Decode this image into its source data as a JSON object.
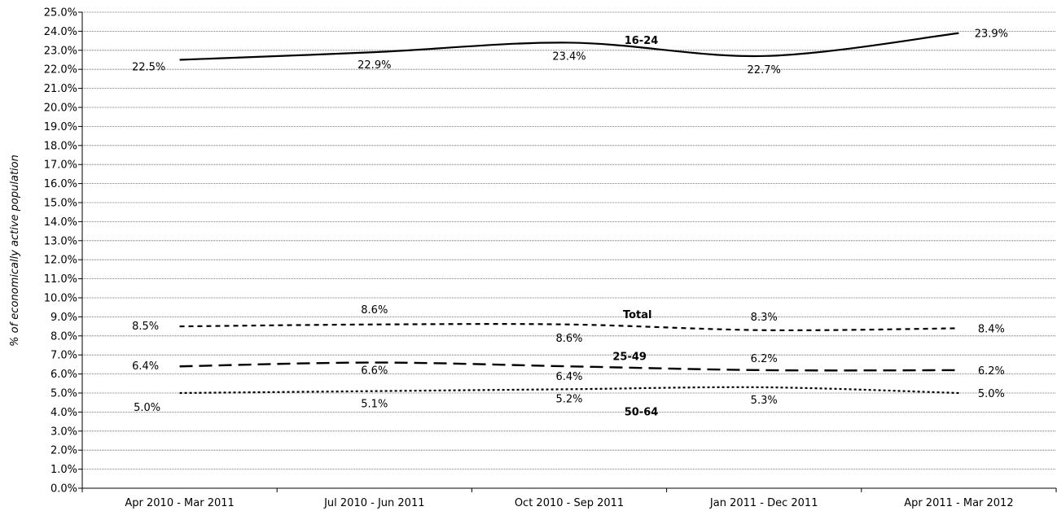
{
  "chart_data": {
    "type": "line",
    "title": "",
    "xlabel": "",
    "ylabel": "% of economically active population",
    "ylim": [
      0,
      25
    ],
    "ytick_step": 1,
    "ytick_format": "percent_1dp",
    "grid": true,
    "categories": [
      "Apr 2010 - Mar 2011",
      "Jul 2010 - Jun 2011",
      "Oct 2010 - Sep 2011",
      "Jan 2011 - Dec 2011",
      "Apr 2011 - Mar 2012"
    ],
    "series": [
      {
        "name": "16-24",
        "values": [
          22.5,
          22.9,
          23.4,
          22.7,
          23.9
        ],
        "labels": [
          "22.5%",
          "22.9%",
          "23.4%",
          "22.7%",
          "23.9%"
        ],
        "style": "solid",
        "color": "#000000"
      },
      {
        "name": "Total",
        "values": [
          8.5,
          8.6,
          8.6,
          8.3,
          8.4
        ],
        "labels": [
          "8.5%",
          "8.6%",
          "8.6%",
          "8.3%",
          "8.4%"
        ],
        "style": "short-dash",
        "color": "#000000"
      },
      {
        "name": "25-49",
        "values": [
          6.4,
          6.6,
          6.4,
          6.2,
          6.2
        ],
        "labels": [
          "6.4%",
          "6.6%",
          "6.4%",
          "6.2%",
          "6.2%"
        ],
        "style": "long-dash",
        "color": "#000000"
      },
      {
        "name": "50-64",
        "values": [
          5.0,
          5.1,
          5.2,
          5.3,
          5.0
        ],
        "labels": [
          "5.0%",
          "5.1%",
          "5.2%",
          "5.3%",
          "5.0%"
        ],
        "style": "dot",
        "color": "#000000"
      }
    ]
  }
}
